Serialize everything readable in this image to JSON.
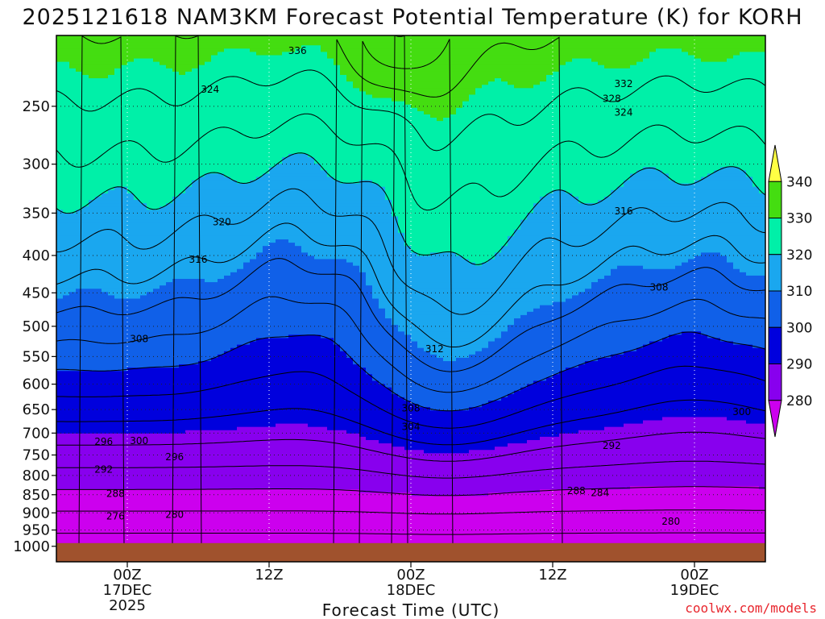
{
  "chart_data": {
    "type": "contour",
    "title": "2025121618 NAM3KM Forecast Potential Temperature (K) for KORH",
    "xlabel": "Forecast Time (UTC)",
    "ylabel": "",
    "x_range_hours": [
      -3,
      27
    ],
    "y_range_hpa": [
      200,
      1050
    ],
    "y_ticks": [
      "250",
      "300",
      "350",
      "400",
      "450",
      "500",
      "550",
      "600",
      "650",
      "700",
      "750",
      "800",
      "850",
      "900",
      "950",
      "1000"
    ],
    "x_ticks": [
      {
        "hour": 0,
        "label": "00Z",
        "line2": "17DEC",
        "line3": "2025"
      },
      {
        "hour": 6,
        "label": "12Z",
        "line2": "",
        "line3": ""
      },
      {
        "hour": 12,
        "label": "00Z",
        "line2": "18DEC",
        "line3": ""
      },
      {
        "hour": 18,
        "label": "12Z",
        "line2": "",
        "line3": ""
      },
      {
        "hour": 24,
        "label": "00Z",
        "line2": "19DEC",
        "line3": ""
      }
    ],
    "colorbar": {
      "levels": [
        "280",
        "290",
        "300",
        "310",
        "320",
        "330",
        "340"
      ],
      "colors": [
        "#cc00ff",
        "#8800ee",
        "#0000ff",
        "#0044e0",
        "#1570ef",
        "#14c8f0",
        "#00ffa0",
        "#18ee18",
        "#88e800",
        "#ffff44"
      ],
      "stops": [
        270,
        280,
        290,
        300,
        310,
        320,
        330,
        340,
        350
      ],
      "band_colors": [
        "#cc00ee",
        "#8800ee",
        "#0000dd",
        "#1060e8",
        "#1aa7ef",
        "#00f0a8",
        "#44dd11",
        "#ffff44"
      ]
    },
    "contour_labels": [
      {
        "v": 336,
        "x": -1.8,
        "p": 210
      },
      {
        "v": 328,
        "x": 21.0,
        "p": 220
      },
      {
        "v": 332,
        "x": 12.0,
        "p": 233
      },
      {
        "v": 324,
        "x": -5.5,
        "p": 237
      },
      {
        "v": 328,
        "x": 11.5,
        "p": 244
      },
      {
        "v": 324,
        "x": 12.0,
        "p": 255
      },
      {
        "v": 320,
        "x": 22.5,
        "p": 290
      },
      {
        "v": 316,
        "x": 12.0,
        "p": 348
      },
      {
        "v": 320,
        "x": -5.0,
        "p": 360
      },
      {
        "v": 316,
        "x": 19.5,
        "p": 392
      },
      {
        "v": 316,
        "x": -6.0,
        "p": 405
      },
      {
        "v": 308,
        "x": 13.5,
        "p": 442
      },
      {
        "v": 312,
        "x": 22.0,
        "p": 502
      },
      {
        "v": 308,
        "x": -8.5,
        "p": 520
      },
      {
        "v": 312,
        "x": 4.0,
        "p": 537
      },
      {
        "v": 304,
        "x": 21.5,
        "p": 620
      },
      {
        "v": 308,
        "x": 3.0,
        "p": 647
      },
      {
        "v": 300,
        "x": 17.0,
        "p": 655
      },
      {
        "v": 304,
        "x": 3.0,
        "p": 686
      },
      {
        "v": 296,
        "x": -10.0,
        "p": 719
      },
      {
        "v": 300,
        "x": -8.5,
        "p": 717
      },
      {
        "v": 292,
        "x": 11.5,
        "p": 728
      },
      {
        "v": 296,
        "x": -7.0,
        "p": 755
      },
      {
        "v": 292,
        "x": -10.0,
        "p": 785
      },
      {
        "v": 296,
        "x": 22.0,
        "p": 790
      },
      {
        "v": 288,
        "x": -9.5,
        "p": 847
      },
      {
        "v": 288,
        "x": 10.0,
        "p": 840
      },
      {
        "v": 284,
        "x": 11.0,
        "p": 845
      },
      {
        "v": 292,
        "x": 22.0,
        "p": 845
      },
      {
        "v": 288,
        "x": 24.0,
        "p": 870
      },
      {
        "v": 276,
        "x": -9.5,
        "p": 910
      },
      {
        "v": 280,
        "x": -7.0,
        "p": 905
      },
      {
        "v": 280,
        "x": 14.0,
        "p": 925
      },
      {
        "v": 280,
        "x": 23.0,
        "p": 915
      },
      {
        "v": 284,
        "x": 20.0,
        "p": 930
      },
      {
        "v": 276,
        "x": 19.0,
        "p": 955
      }
    ]
  },
  "credit": "coolwx.com/models"
}
